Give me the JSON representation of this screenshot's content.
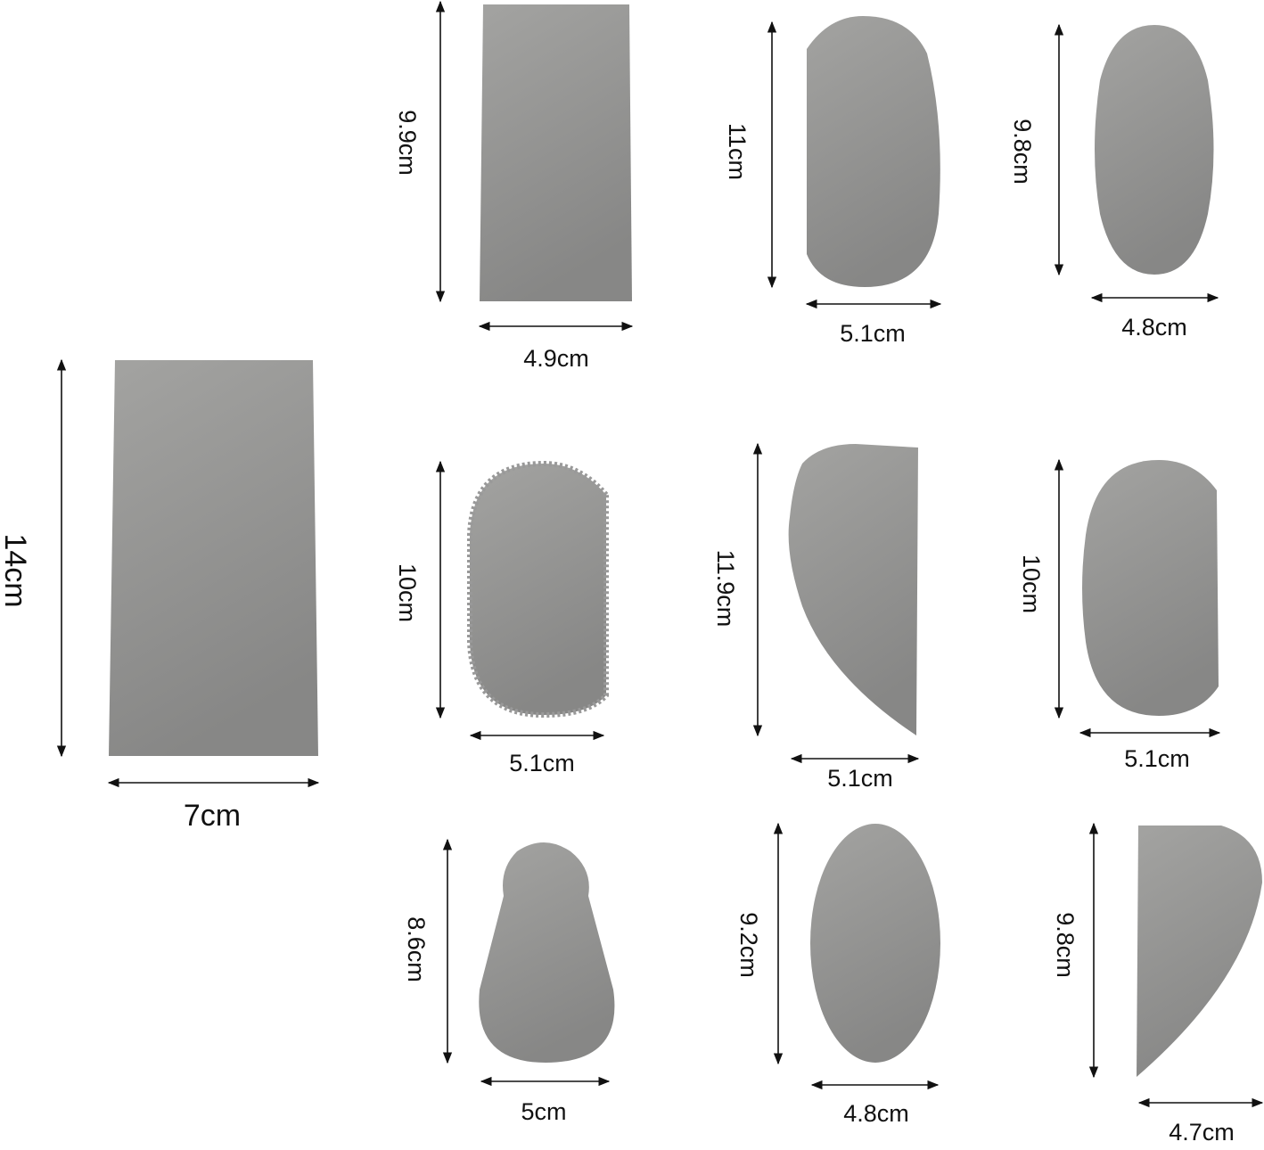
{
  "items": [
    {
      "height": "14cm",
      "width": "7cm"
    },
    {
      "height": "9.9cm",
      "width": "4.9cm"
    },
    {
      "height": "11cm",
      "width": "5.1cm"
    },
    {
      "height": "9.8cm",
      "width": "4.8cm"
    },
    {
      "height": "10cm",
      "width": "5.1cm"
    },
    {
      "height": "11.9cm",
      "width": "5.1cm"
    },
    {
      "height": "10cm",
      "width": "5.1cm"
    },
    {
      "height": "8.6cm",
      "width": "5cm"
    },
    {
      "height": "9.2cm",
      "width": "4.8cm"
    },
    {
      "height": "9.8cm",
      "width": "4.7cm"
    }
  ]
}
